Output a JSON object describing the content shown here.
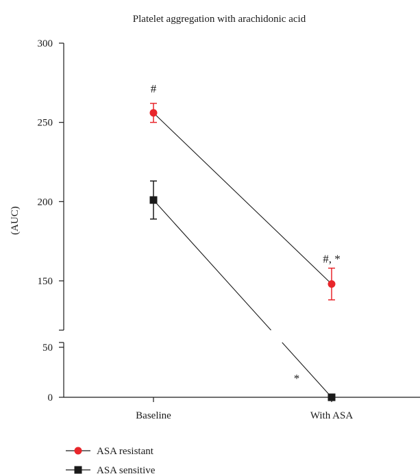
{
  "chart_data": {
    "type": "line",
    "title": "Platelet aggregation with arachidonic acid",
    "xlabel": "",
    "ylabel": "(AUC)",
    "categories": [
      "Baseline",
      "With ASA"
    ],
    "y_axis": {
      "broken": true,
      "lower_segment": {
        "range": [
          0,
          50
        ],
        "ticks": [
          0,
          50
        ]
      },
      "upper_segment": {
        "range": [
          120,
          300
        ],
        "ticks": [
          150,
          200,
          250,
          300
        ]
      }
    },
    "series": [
      {
        "name": "ASA resistant",
        "color": "#e8262b",
        "marker": "circle",
        "values": [
          256,
          148
        ],
        "errors": [
          6,
          10
        ],
        "annotations": [
          "#",
          "#, *"
        ]
      },
      {
        "name": "ASA sensitive",
        "color": "#1a1a1a",
        "marker": "square",
        "values": [
          201,
          0
        ],
        "errors": [
          12,
          0
        ],
        "annotations": [
          "",
          "*"
        ]
      }
    ],
    "legend_position": "bottom-left",
    "grid": false
  }
}
